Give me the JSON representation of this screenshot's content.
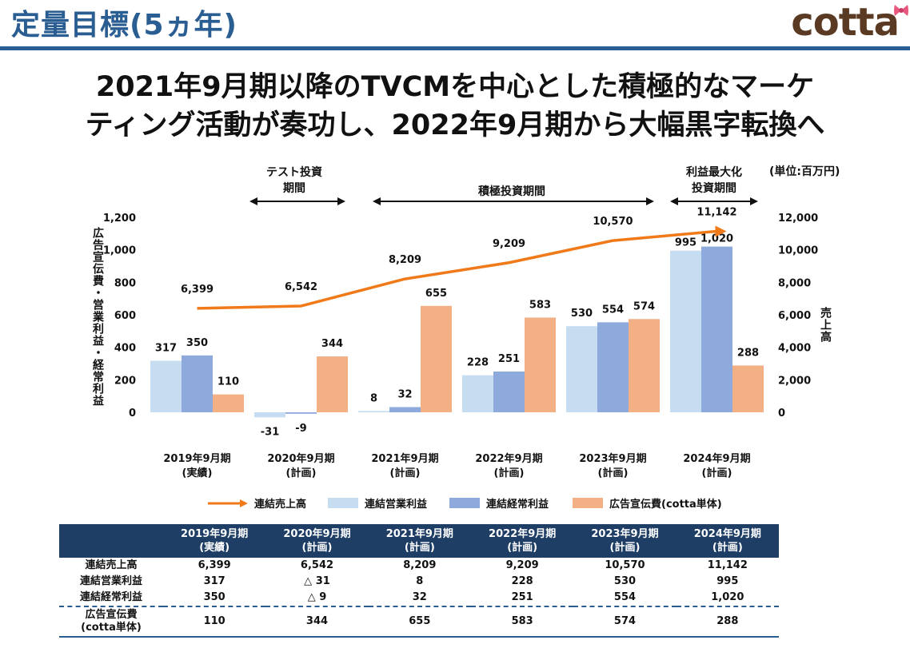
{
  "page": {
    "title": "定量目標(5ヵ年)",
    "logo_text": "cotta",
    "headline_line1": "2021年9月期以降のTVCMを中心とした積極的なマーケ",
    "headline_line2": "ティング活動が奏功し、2022年9月期から大幅黒字転換へ",
    "unit_label": "(単位:百万円)",
    "accent_color": "#2a5d92"
  },
  "periods": {
    "test": {
      "line1": "テスト投資",
      "line2": "期間"
    },
    "aggressive": {
      "line1": "積極投資期間"
    },
    "profit_max": {
      "line1": "利益最大化",
      "line2": "投資期間"
    }
  },
  "chart_data": {
    "type": "bar",
    "categories": [
      {
        "line1": "2019年9月期",
        "line2": "(実績)"
      },
      {
        "line1": "2020年9月期",
        "line2": "(計画)"
      },
      {
        "line1": "2021年9月期",
        "line2": "(計画)"
      },
      {
        "line1": "2022年9月期",
        "line2": "(計画)"
      },
      {
        "line1": "2023年9月期",
        "line2": "(計画)"
      },
      {
        "line1": "2024年9月期",
        "line2": "(計画)"
      }
    ],
    "left_axis": {
      "label": "広告宣伝費・営業利益・経常利益",
      "range": [
        0,
        1200
      ],
      "ticks": [
        "0",
        "200",
        "400",
        "600",
        "800",
        "1,000",
        "1,200"
      ]
    },
    "right_axis": {
      "label": "売上高",
      "range": [
        0,
        12000
      ],
      "ticks": [
        "0",
        "2,000",
        "4,000",
        "6,000",
        "8,000",
        "10,000",
        "12,000"
      ]
    },
    "series": [
      {
        "name": "連結売上高",
        "kind": "line",
        "axis": "right",
        "color": "#f07a1a",
        "values": [
          6399,
          6542,
          8209,
          9209,
          10570,
          11142
        ],
        "labels": [
          "6,399",
          "6,542",
          "8,209",
          "9,209",
          "10,570",
          "11,142"
        ]
      },
      {
        "name": "連結営業利益",
        "kind": "bar",
        "axis": "left",
        "color": "#c6dcf0",
        "values": [
          317,
          -31,
          8,
          228,
          530,
          995
        ],
        "labels": [
          "317",
          "-31",
          "8",
          "228",
          "530",
          "995"
        ]
      },
      {
        "name": "連結経常利益",
        "kind": "bar",
        "axis": "left",
        "color": "#8eaadc",
        "values": [
          350,
          -9,
          32,
          251,
          554,
          1020
        ],
        "labels": [
          "350",
          "-9",
          "32",
          "251",
          "554",
          "1,020"
        ]
      },
      {
        "name": "広告宣伝費(cotta単体)",
        "kind": "bar",
        "axis": "left",
        "color": "#f2b084",
        "values": [
          110,
          344,
          655,
          583,
          574,
          288
        ],
        "labels": [
          "110",
          "344",
          "655",
          "583",
          "574",
          "288"
        ]
      }
    ]
  },
  "table": {
    "headers": [
      {
        "line1": "2019年9月期",
        "line2": "(実績)"
      },
      {
        "line1": "2020年9月期",
        "line2": "(計画)"
      },
      {
        "line1": "2021年9月期",
        "line2": "(計画)"
      },
      {
        "line1": "2022年9月期",
        "line2": "(計画)"
      },
      {
        "line1": "2023年9月期",
        "line2": "(計画)"
      },
      {
        "line1": "2024年9月期",
        "line2": "(計画)"
      }
    ],
    "rows": [
      {
        "label": "連結売上高",
        "cells": [
          "6,399",
          "6,542",
          "8,209",
          "9,209",
          "10,570",
          "11,142"
        ]
      },
      {
        "label": "連結営業利益",
        "cells": [
          "317",
          "△ 31",
          "8",
          "228",
          "530",
          "995"
        ]
      },
      {
        "label": "連結経常利益",
        "cells": [
          "350",
          "△ 9",
          "32",
          "251",
          "554",
          "1,020"
        ]
      },
      {
        "label_line1": "広告宣伝費",
        "label_line2": "(cotta単体)",
        "cells": [
          "110",
          "344",
          "655",
          "583",
          "574",
          "288"
        ]
      }
    ]
  }
}
